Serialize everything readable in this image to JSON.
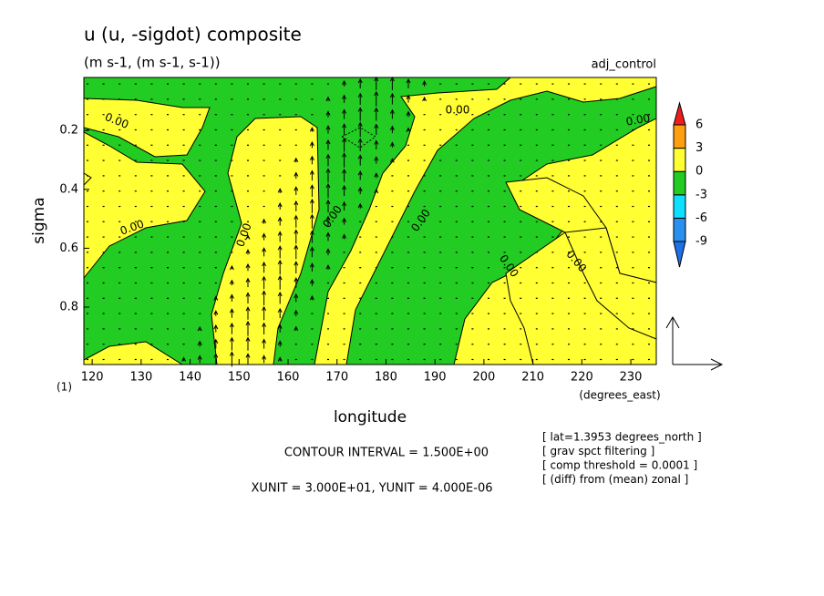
{
  "chart_data": {
    "type": "contour",
    "title": "u (u, -sigdot) composite",
    "subtitle": "(m s-1, (m s-1, s-1))",
    "dataset": "adj_control",
    "x_label": "longitude",
    "x_units": "(degrees_east)",
    "y_label": "sigma",
    "y_units": "(1)",
    "xlim": [
      118.3,
      235.2
    ],
    "xticks": [
      120,
      130,
      140,
      150,
      160,
      170,
      180,
      190,
      200,
      210,
      220,
      230
    ],
    "ylim": [
      0.02,
      0.995
    ],
    "y_inverted": true,
    "yticks": [
      0.2,
      0.4,
      0.6,
      0.8
    ],
    "contour_labels": [
      "0.00",
      "0.00",
      "0.00",
      "0.00",
      "0.00",
      "0.00",
      "0.00",
      "0.00",
      "0.00"
    ],
    "colorbar": {
      "levels": [
        -9,
        -6,
        -3,
        0,
        3,
        6
      ],
      "colors": [
        "#1e6fe8",
        "#2a90f0",
        "#10e0ff",
        "#22cc22",
        "#ffff33",
        "#ff9f10",
        "#ee1c1c"
      ]
    },
    "footer": [
      "CONTOUR INTERVAL = 1.500E+00",
      "XUNIT = 3.000E+01, YUNIT = 4.000E-06"
    ],
    "notes": [
      "[ lat=1.3953 degrees_north ]",
      "[ grav spct filtering ]",
      "[ comp threshold = 0.0001 ]",
      "[ (diff) from (mean) zonal ]"
    ]
  }
}
